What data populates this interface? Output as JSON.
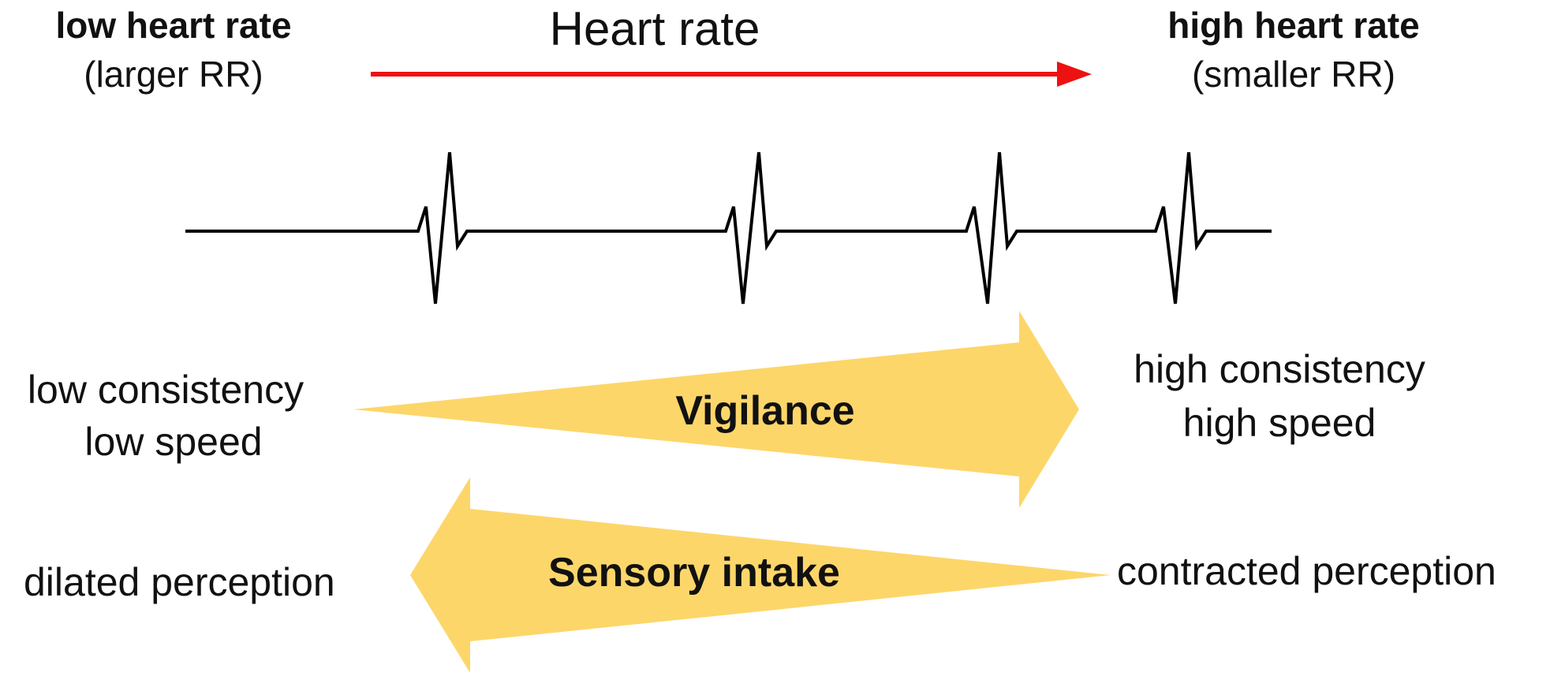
{
  "top": {
    "left_title": "low heart rate",
    "left_sub": "(larger RR)",
    "center_title": "Heart rate",
    "right_title": "high heart rate",
    "right_sub": "(smaller RR)"
  },
  "vigilance": {
    "label": "Vigilance",
    "left_line1": "low consistency",
    "left_line2": "low speed",
    "right_line1": "high consistency",
    "right_line2": "high speed"
  },
  "sensory": {
    "label": "Sensory intake",
    "left": "dilated perception",
    "right": "contracted perception"
  },
  "colors": {
    "arrow_red": "#ee1111",
    "wedge_yellow": "#fdd66a",
    "ecg_line": "#000000"
  }
}
